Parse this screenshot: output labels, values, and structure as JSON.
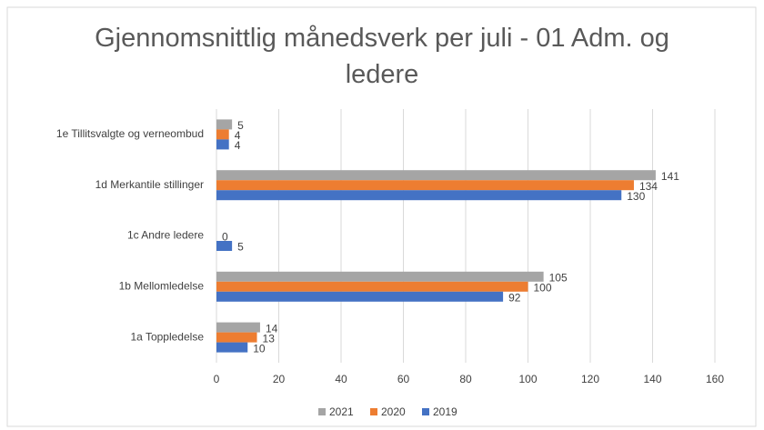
{
  "chart_data": {
    "type": "hbar",
    "title": "Gjennomsnittlig månedsverk per juli - 01 Adm. og ledere",
    "categories": [
      "1e Tillitsvalgte og verneombud",
      "1d Merkantile stillinger",
      "1c Andre ledere",
      "1b Mellomledelse",
      "1a Toppledelse"
    ],
    "series": [
      {
        "name": "2021",
        "color": "#a5a5a5",
        "values": [
          5,
          141,
          null,
          105,
          14
        ]
      },
      {
        "name": "2020",
        "color": "#ed7d31",
        "values": [
          4,
          134,
          0,
          100,
          13
        ]
      },
      {
        "name": "2019",
        "color": "#4472c4",
        "values": [
          4,
          130,
          5,
          92,
          10
        ]
      }
    ],
    "xlim": [
      0,
      160
    ],
    "xticks": [
      0,
      20,
      40,
      60,
      80,
      100,
      120,
      140,
      160
    ],
    "grid": true,
    "legend": "bottom"
  }
}
